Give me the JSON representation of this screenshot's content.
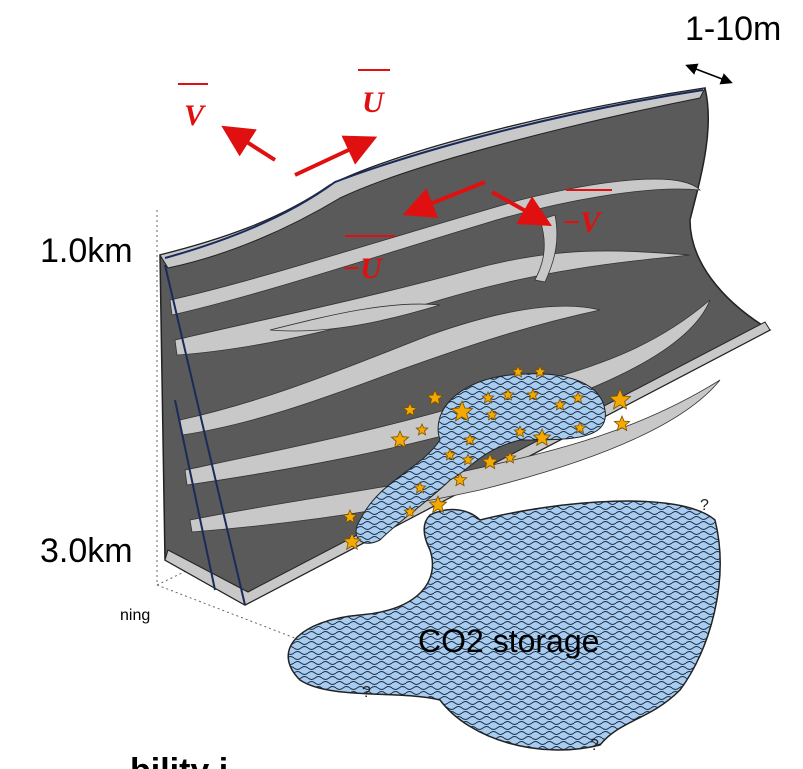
{
  "labels": {
    "width": "1-10m",
    "depth_top": "1.0km",
    "depth_bottom": "3.0km",
    "storage": "CO2 storage",
    "left_cut": "ning",
    "bottom_cut": "bility i"
  },
  "vectors": [
    {
      "label": "V"
    },
    {
      "label": "U"
    },
    {
      "label": "−U"
    },
    {
      "label": "−V"
    }
  ],
  "questions": [
    "?",
    "?",
    "?"
  ]
}
